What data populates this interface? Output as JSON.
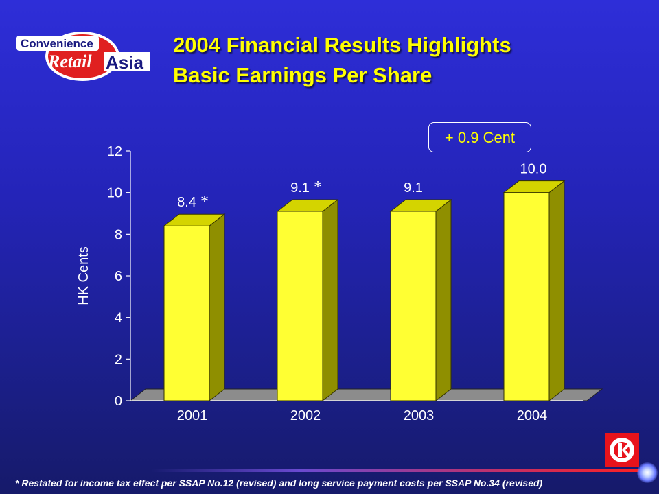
{
  "logo": {
    "line1": "Convenience",
    "line2a": "Retail",
    "line2b": "Asia"
  },
  "title": {
    "line1": "2004 Financial Results Highlights",
    "line2": "Basic Earnings Per Share"
  },
  "callout": "+ 0.9 Cent",
  "footnote": "* Restated for income tax effect per SSAP No.12 (revised) and long service payment costs per SSAP No.34 (revised)",
  "colors": {
    "bar_front": "#ffff33",
    "bar_side": "#8f8f00",
    "bar_top": "#d4d400",
    "title": "#ffff00",
    "floor": "#8c8c8c"
  },
  "chart_data": {
    "type": "bar",
    "categories": [
      "2001",
      "2002",
      "2003",
      "2004"
    ],
    "values": [
      8.4,
      9.1,
      9.1,
      10.0
    ],
    "value_labels": [
      "8.4",
      "9.1",
      "9.1",
      "10.0"
    ],
    "asterisk": [
      true,
      true,
      false,
      false
    ],
    "ylabel": "HK Cents",
    "ylim": [
      0,
      12
    ],
    "yticks": [
      0,
      2,
      4,
      6,
      8,
      10,
      12
    ],
    "grid": false,
    "style": "3d"
  }
}
